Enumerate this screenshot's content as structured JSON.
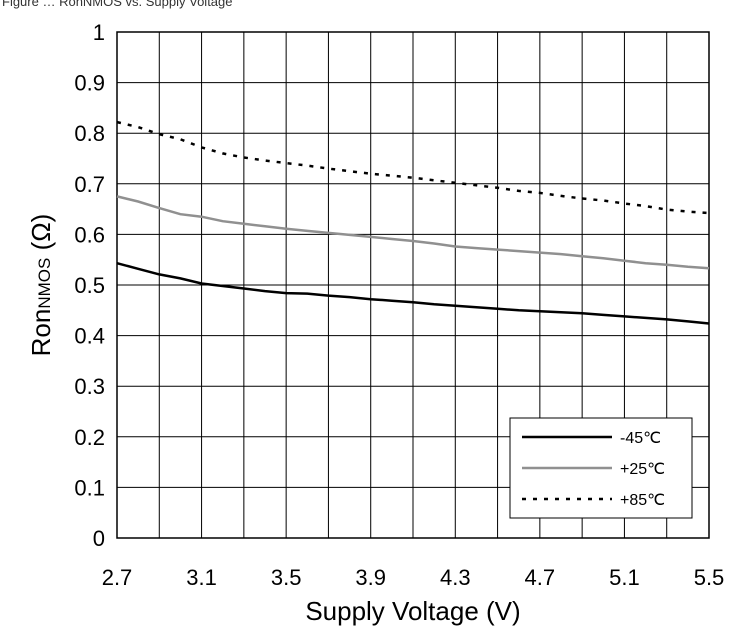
{
  "header": {
    "caption": "Figure … RonNMOS vs. Supply Voltage"
  },
  "chart_data": {
    "type": "line",
    "xlabel": "Supply Voltage (V)",
    "ylabel": {
      "main": "Ron",
      "sub": "NMOS",
      "unit": " (Ω)"
    },
    "xlim": [
      2.7,
      5.5
    ],
    "ylim": [
      0,
      1
    ],
    "x_ticks": [
      2.7,
      2.9,
      3.1,
      3.3,
      3.5,
      3.7,
      3.9,
      4.1,
      4.3,
      4.5,
      4.7,
      4.9,
      5.1,
      5.3,
      5.5
    ],
    "x_tick_labels": [
      "2.7",
      "3.1",
      "3.5",
      "3.9",
      "4.3",
      "4.7",
      "5.1",
      "5.5"
    ],
    "x_tick_label_values": [
      2.7,
      3.1,
      3.5,
      3.9,
      4.3,
      4.7,
      5.1,
      5.5
    ],
    "y_ticks": [
      0,
      0.1,
      0.2,
      0.3,
      0.4,
      0.5,
      0.6,
      0.7,
      0.8,
      0.9,
      1
    ],
    "y_tick_labels": [
      "0",
      "0.1",
      "0.2",
      "0.3",
      "0.4",
      "0.5",
      "0.6",
      "0.7",
      "0.8",
      "0.9",
      "1"
    ],
    "grid": true,
    "legend_position": "bottom-right",
    "x": [
      2.7,
      2.8,
      2.9,
      3.0,
      3.1,
      3.2,
      3.3,
      3.4,
      3.5,
      3.6,
      3.7,
      3.8,
      3.9,
      4.0,
      4.1,
      4.2,
      4.3,
      4.4,
      4.5,
      4.6,
      4.7,
      4.8,
      4.9,
      5.0,
      5.1,
      5.2,
      5.3,
      5.4,
      5.5
    ],
    "series": [
      {
        "name": "-45℃",
        "color": "#000000",
        "style": "solid",
        "values": [
          0.543,
          0.532,
          0.521,
          0.513,
          0.503,
          0.498,
          0.493,
          0.488,
          0.484,
          0.483,
          0.479,
          0.476,
          0.472,
          0.469,
          0.466,
          0.462,
          0.459,
          0.456,
          0.453,
          0.45,
          0.448,
          0.446,
          0.444,
          0.441,
          0.438,
          0.435,
          0.432,
          0.428,
          0.424
        ]
      },
      {
        "name": "+25℃",
        "color": "#909090",
        "style": "solid",
        "values": [
          0.675,
          0.665,
          0.652,
          0.64,
          0.635,
          0.626,
          0.621,
          0.616,
          0.611,
          0.607,
          0.603,
          0.599,
          0.595,
          0.591,
          0.587,
          0.582,
          0.576,
          0.573,
          0.57,
          0.567,
          0.564,
          0.561,
          0.557,
          0.553,
          0.548,
          0.543,
          0.54,
          0.536,
          0.533
        ]
      },
      {
        "name": "+85℃",
        "color": "#000000",
        "style": "dotted",
        "values": [
          0.822,
          0.812,
          0.798,
          0.788,
          0.772,
          0.76,
          0.752,
          0.746,
          0.741,
          0.736,
          0.73,
          0.725,
          0.72,
          0.716,
          0.712,
          0.707,
          0.702,
          0.697,
          0.692,
          0.686,
          0.682,
          0.676,
          0.671,
          0.667,
          0.661,
          0.656,
          0.649,
          0.645,
          0.642
        ]
      }
    ]
  }
}
